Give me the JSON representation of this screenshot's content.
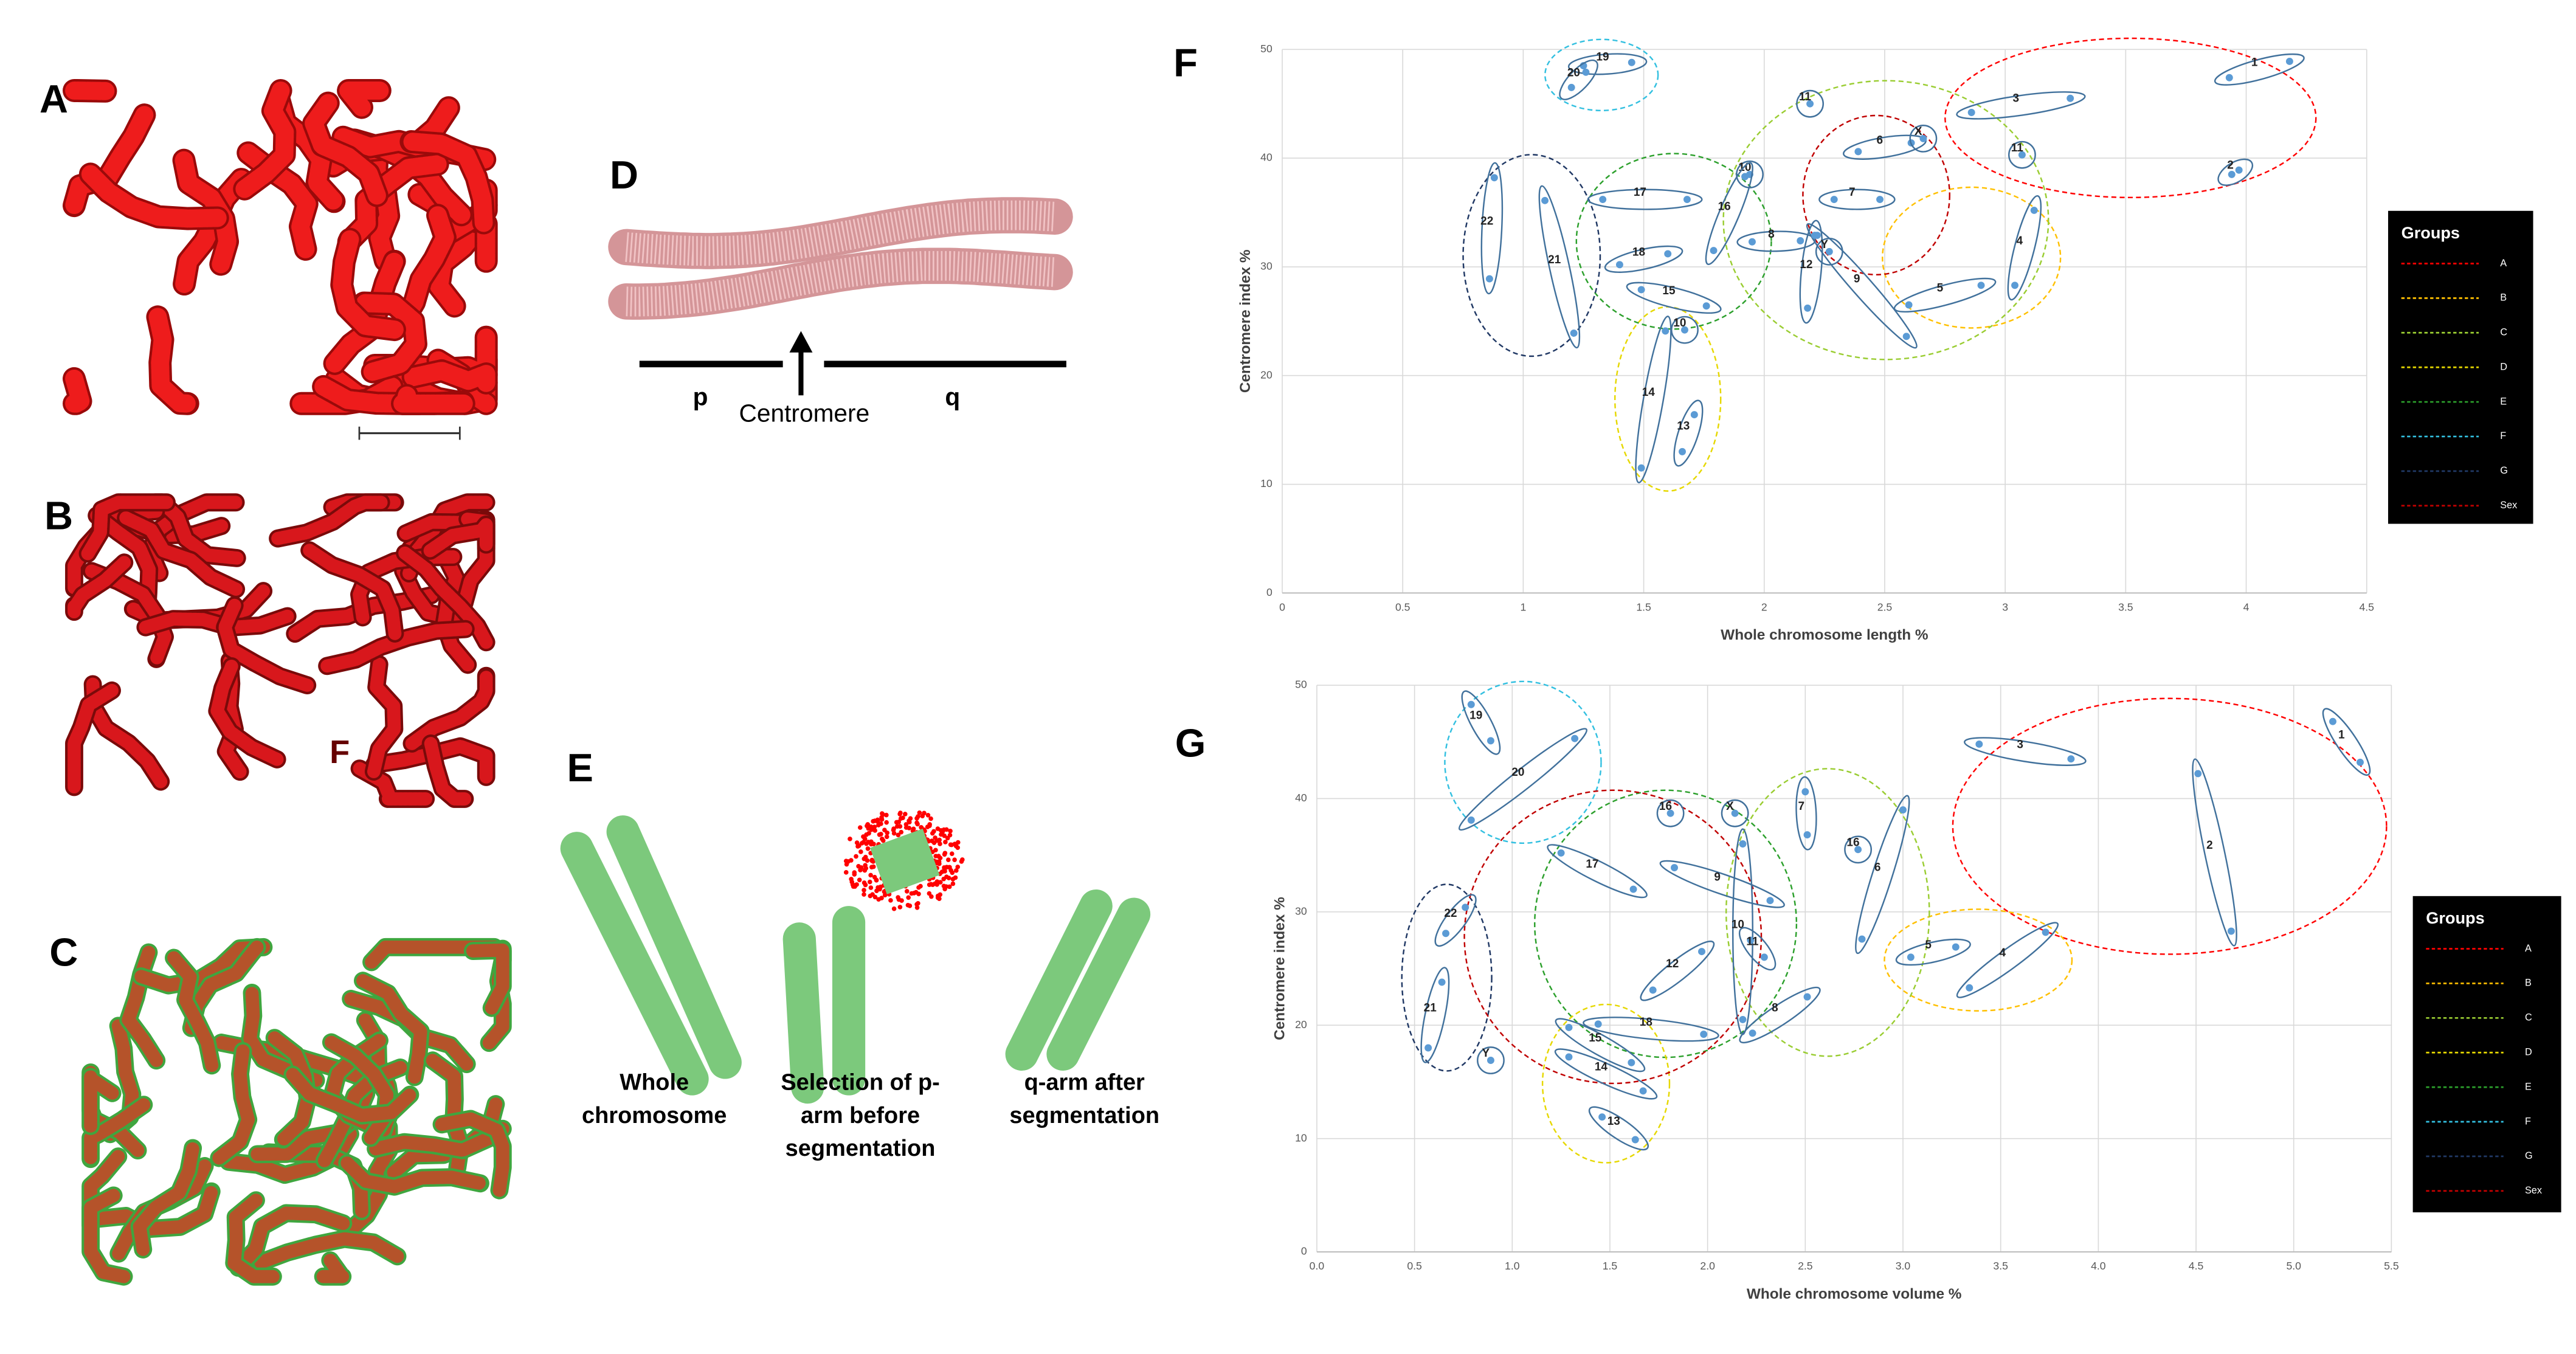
{
  "panels": {
    "A": {
      "letter": "A"
    },
    "B": {
      "letter": "B",
      "stray_label": "F"
    },
    "C": {
      "letter": "C"
    },
    "D": {
      "letter": "D",
      "p_label": "p",
      "centromere_label": "Centromere",
      "q_label": "q"
    },
    "E": {
      "letter": "E",
      "captions": [
        [
          "Whole",
          "chromosome"
        ],
        [
          "Selection of p-",
          "arm before",
          "segmentation"
        ],
        [
          "q-arm after",
          "segmentation"
        ]
      ]
    }
  },
  "chart_data": [
    {
      "type": "scatter",
      "panel_letter": "F",
      "x_label": "Whole chromosome length %",
      "y_label": "Centromere index %",
      "xlim": [
        0,
        4.5
      ],
      "ylim": [
        0,
        50
      ],
      "xticks": [
        0,
        0.5,
        1,
        1.5,
        2,
        2.5,
        3,
        3.5,
        4,
        4.5
      ],
      "yticks": [
        0,
        10,
        20,
        30,
        40,
        50
      ],
      "grid": true,
      "point_color": "#5b9bd5",
      "legend": {
        "title": "Groups",
        "position": "right",
        "entries": [
          {
            "name": "A",
            "color": "#ff0000"
          },
          {
            "name": "B",
            "color": "#ffc000"
          },
          {
            "name": "C",
            "color": "#9acd32"
          },
          {
            "name": "D",
            "color": "#e6d800"
          },
          {
            "name": "E",
            "color": "#2ca02c"
          },
          {
            "name": "F",
            "color": "#33c0e0"
          },
          {
            "name": "G",
            "color": "#203864"
          },
          {
            "name": "Sex",
            "color": "#c00000"
          }
        ]
      },
      "clusters": [
        {
          "label": "1",
          "group": "A",
          "x": [
            3.93,
            4.18
          ],
          "y": [
            47.4,
            48.9
          ]
        },
        {
          "label": "2",
          "group": "A",
          "x": [
            3.94,
            3.97
          ],
          "y": [
            38.5,
            38.9
          ]
        },
        {
          "label": "3",
          "group": "A",
          "x": [
            2.86,
            3.27
          ],
          "y": [
            44.2,
            45.5
          ]
        },
        {
          "label": "4",
          "group": "B",
          "x": [
            3.04,
            3.12
          ],
          "y": [
            28.3,
            35.2
          ]
        },
        {
          "label": "5",
          "group": "B",
          "x": [
            2.6,
            2.9
          ],
          "y": [
            26.5,
            28.3
          ]
        },
        {
          "label": "6",
          "group": "C",
          "x": [
            2.39,
            2.61
          ],
          "y": [
            40.6,
            41.4
          ]
        },
        {
          "label": "7",
          "group": "C",
          "x": [
            2.29,
            2.48
          ],
          "y": [
            36.2,
            36.2
          ]
        },
        {
          "label": "8",
          "group": "C",
          "x": [
            1.95,
            2.15
          ],
          "y": [
            32.3,
            32.4
          ]
        },
        {
          "label": "9",
          "group": "C",
          "x": [
            2.22,
            2.59
          ],
          "y": [
            32.9,
            23.6
          ]
        },
        {
          "label": "10",
          "group": "C",
          "x": [
            1.94
          ],
          "y": [
            38.5
          ]
        },
        {
          "label": "10",
          "group": "D",
          "x": [
            1.67
          ],
          "y": [
            24.2
          ]
        },
        {
          "label": "11",
          "group": "C",
          "x": [
            2.19
          ],
          "y": [
            45.0
          ]
        },
        {
          "label": "11",
          "group": "C",
          "x": [
            3.07
          ],
          "y": [
            40.3
          ]
        },
        {
          "label": "12",
          "group": "C",
          "x": [
            2.18,
            2.21
          ],
          "y": [
            26.2,
            32.9
          ]
        },
        {
          "label": "13",
          "group": "D",
          "x": [
            1.66,
            1.71
          ],
          "y": [
            13.0,
            16.4
          ]
        },
        {
          "label": "14",
          "group": "D",
          "x": [
            1.49,
            1.59
          ],
          "y": [
            11.5,
            24.1
          ]
        },
        {
          "label": "15",
          "group": "E",
          "x": [
            1.49,
            1.76
          ],
          "y": [
            27.9,
            26.4
          ]
        },
        {
          "label": "16",
          "group": "E",
          "x": [
            1.79,
            1.92
          ],
          "y": [
            31.5,
            38.3
          ]
        },
        {
          "label": "17",
          "group": "E",
          "x": [
            1.33,
            1.68
          ],
          "y": [
            36.2,
            36.2
          ]
        },
        {
          "label": "18",
          "group": "E",
          "x": [
            1.4,
            1.6
          ],
          "y": [
            30.2,
            31.2
          ]
        },
        {
          "label": "19",
          "group": "F",
          "x": [
            1.25,
            1.45
          ],
          "y": [
            48.5,
            48.8
          ]
        },
        {
          "label": "20",
          "group": "F",
          "x": [
            1.2,
            1.26
          ],
          "y": [
            46.5,
            47.9
          ]
        },
        {
          "label": "21",
          "group": "G",
          "x": [
            1.09,
            1.21
          ],
          "y": [
            36.1,
            23.9
          ]
        },
        {
          "label": "22",
          "group": "G",
          "x": [
            0.86,
            0.88
          ],
          "y": [
            28.9,
            38.2
          ]
        },
        {
          "label": "X",
          "group": "Sex",
          "x": [
            2.66
          ],
          "y": [
            41.8
          ]
        },
        {
          "label": "Y",
          "group": "Sex",
          "x": [
            2.27
          ],
          "y": [
            31.4
          ]
        }
      ]
    },
    {
      "type": "scatter",
      "panel_letter": "G",
      "x_label": "Whole chromosome volume %",
      "y_label": "Centromere index %",
      "xlim": [
        0,
        5.5
      ],
      "ylim": [
        0,
        50
      ],
      "xticks": [
        {
          "value": 0,
          "label": "0.0"
        },
        {
          "value": 0.5,
          "label": "0.5"
        },
        {
          "value": 1,
          "label": "1.0"
        },
        {
          "value": 1.5,
          "label": "1.5"
        },
        {
          "value": 2,
          "label": "2.0"
        },
        {
          "value": 2.5,
          "label": "2.5"
        },
        {
          "value": 3,
          "label": "3.0"
        },
        {
          "value": 3.5,
          "label": "3.5"
        },
        {
          "value": 4,
          "label": "4.0"
        },
        {
          "value": 4.5,
          "label": "4.5"
        },
        {
          "value": 5,
          "label": "5.0"
        },
        {
          "value": 5.5,
          "label": "5.5"
        }
      ],
      "yticks": [
        0,
        10,
        20,
        30,
        40,
        50
      ],
      "grid": true,
      "point_color": "#5b9bd5",
      "legend": {
        "title": "Groups",
        "position": "right",
        "entries": [
          {
            "name": "A",
            "color": "#ff0000"
          },
          {
            "name": "B",
            "color": "#ffc000"
          },
          {
            "name": "C",
            "color": "#9acd32"
          },
          {
            "name": "D",
            "color": "#e6d800"
          },
          {
            "name": "E",
            "color": "#2ca02c"
          },
          {
            "name": "F",
            "color": "#33c0e0"
          },
          {
            "name": "G",
            "color": "#203864"
          },
          {
            "name": "Sex",
            "color": "#c00000"
          }
        ]
      },
      "clusters": [
        {
          "label": "1",
          "group": "A",
          "x": [
            5.2,
            5.34
          ],
          "y": [
            46.8,
            43.2
          ]
        },
        {
          "label": "2",
          "group": "A",
          "x": [
            4.51,
            4.68
          ],
          "y": [
            42.2,
            28.3
          ]
        },
        {
          "label": "3",
          "group": "A",
          "x": [
            3.39,
            3.86
          ],
          "y": [
            44.8,
            43.5
          ]
        },
        {
          "label": "4",
          "group": "B",
          "x": [
            3.34,
            3.73
          ],
          "y": [
            23.3,
            28.2
          ]
        },
        {
          "label": "5",
          "group": "B",
          "x": [
            3.04,
            3.27
          ],
          "y": [
            26.0,
            26.9
          ]
        },
        {
          "label": "6",
          "group": "C",
          "x": [
            2.79,
            3.0
          ],
          "y": [
            27.6,
            39.0
          ]
        },
        {
          "label": "7",
          "group": "C",
          "x": [
            2.5,
            2.51
          ],
          "y": [
            40.6,
            36.8
          ]
        },
        {
          "label": "8",
          "group": "C",
          "x": [
            2.23,
            2.51
          ],
          "y": [
            19.3,
            22.5
          ]
        },
        {
          "label": "9",
          "group": "E",
          "x": [
            1.83,
            2.32
          ],
          "y": [
            33.9,
            31.0
          ]
        },
        {
          "label": "10",
          "group": "E",
          "x": [
            2.18,
            2.18
          ],
          "y": [
            36.0,
            20.5
          ]
        },
        {
          "label": "11",
          "group": "E",
          "x": [
            2.22,
            2.29
          ],
          "y": [
            27.5,
            26.0
          ]
        },
        {
          "label": "12",
          "group": "E",
          "x": [
            1.72,
            1.97
          ],
          "y": [
            23.1,
            26.5
          ]
        },
        {
          "label": "13",
          "group": "D",
          "x": [
            1.46,
            1.63
          ],
          "y": [
            11.9,
            9.9
          ]
        },
        {
          "label": "14",
          "group": "D",
          "x": [
            1.29,
            1.67
          ],
          "y": [
            17.2,
            14.2
          ]
        },
        {
          "label": "15",
          "group": "D",
          "x": [
            1.29,
            1.61
          ],
          "y": [
            19.8,
            16.7
          ]
        },
        {
          "label": "16",
          "group": "E",
          "x": [
            1.81
          ],
          "y": [
            38.7
          ]
        },
        {
          "label": "16",
          "group": "C",
          "x": [
            2.77
          ],
          "y": [
            35.5
          ]
        },
        {
          "label": "17",
          "group": "E",
          "x": [
            1.25,
            1.62
          ],
          "y": [
            35.2,
            32.0
          ]
        },
        {
          "label": "18",
          "group": "E",
          "x": [
            1.44,
            1.98
          ],
          "y": [
            20.1,
            19.2
          ]
        },
        {
          "label": "19",
          "group": "F",
          "x": [
            0.79,
            0.89
          ],
          "y": [
            48.3,
            45.1
          ]
        },
        {
          "label": "20",
          "group": "F",
          "x": [
            0.79,
            1.32
          ],
          "y": [
            38.1,
            45.3
          ]
        },
        {
          "label": "21",
          "group": "G",
          "x": [
            0.57,
            0.64
          ],
          "y": [
            18.0,
            23.8
          ]
        },
        {
          "label": "22",
          "group": "G",
          "x": [
            0.66,
            0.76
          ],
          "y": [
            28.1,
            30.4
          ]
        },
        {
          "label": "X",
          "group": "Sex",
          "x": [
            2.14
          ],
          "y": [
            38.7
          ]
        },
        {
          "label": "Y",
          "group": "Sex",
          "x": [
            0.89
          ],
          "y": [
            16.9
          ]
        }
      ]
    }
  ]
}
